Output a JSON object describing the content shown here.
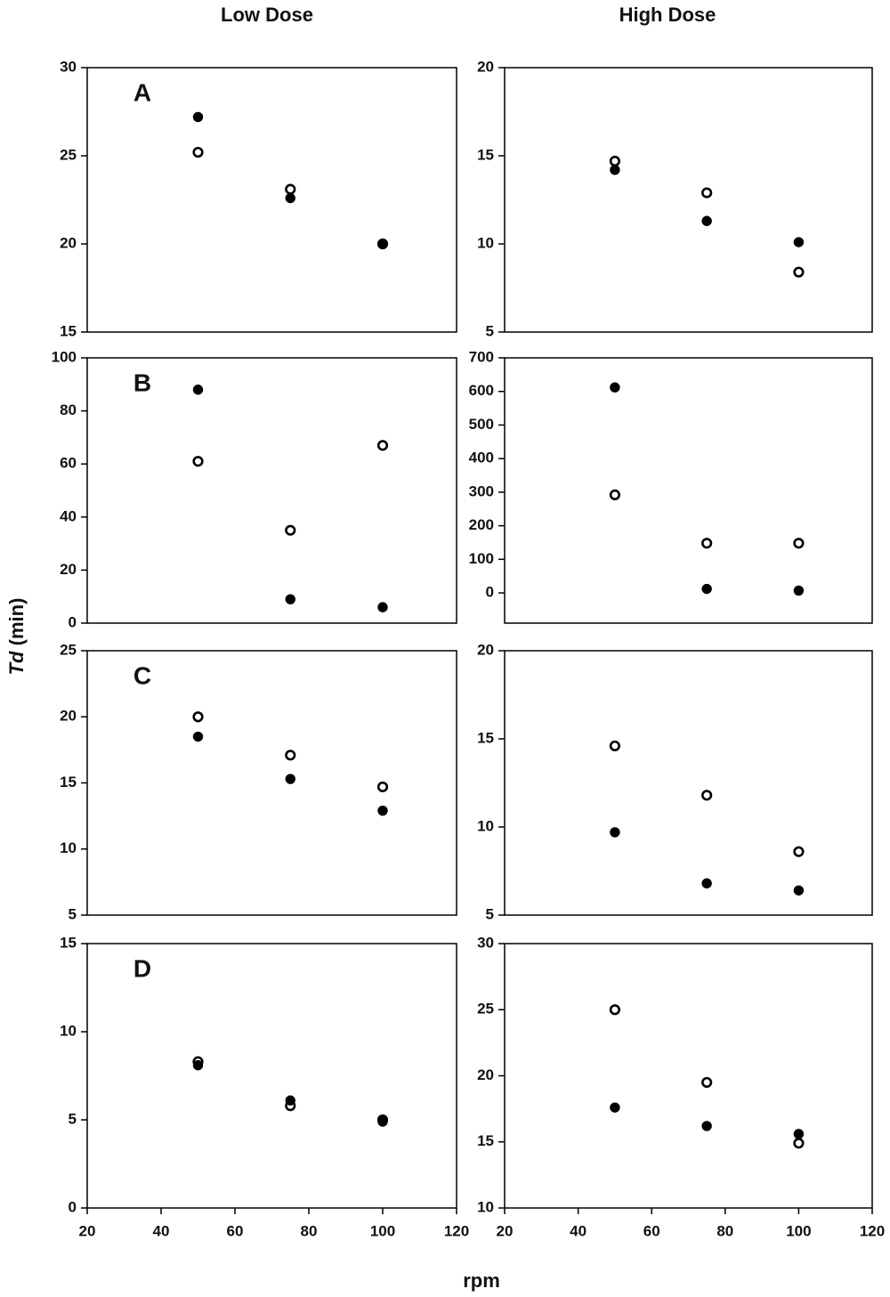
{
  "column_titles": [
    "Low Dose",
    "High Dose"
  ],
  "y_label_symbol": "Td",
  "y_label_unit": "(min)",
  "x_label": "rpm",
  "chart_data": [
    {
      "type": "scatter",
      "panel_label": "A",
      "x": [
        50,
        75,
        100
      ],
      "xlim": [
        20,
        120
      ],
      "ylim": [
        15,
        30
      ],
      "yticks": [
        15,
        20,
        25,
        30
      ],
      "series": [
        {
          "marker": "open",
          "color": "#000000",
          "values": [
            25.2,
            23.1,
            20
          ]
        },
        {
          "marker": "filled",
          "color": "#000000",
          "values": [
            27.2,
            22.6,
            20
          ]
        }
      ]
    },
    {
      "type": "scatter",
      "x": [
        50,
        75,
        100
      ],
      "xlim": [
        20,
        120
      ],
      "ylim": [
        5,
        20
      ],
      "yticks": [
        5,
        10,
        15,
        20
      ],
      "series": [
        {
          "marker": "open",
          "color": "#000000",
          "values": [
            14.7,
            12.9,
            8.4
          ]
        },
        {
          "marker": "filled",
          "color": "#000000",
          "values": [
            14.2,
            11.3,
            10.1
          ]
        }
      ]
    },
    {
      "type": "scatter",
      "panel_label": "B",
      "x": [
        50,
        75,
        100
      ],
      "xlim": [
        20,
        120
      ],
      "ylim": [
        0,
        100
      ],
      "yticks": [
        0,
        20,
        40,
        60,
        80,
        100
      ],
      "series": [
        {
          "marker": "open",
          "color": "#000000",
          "values": [
            61,
            35,
            67
          ]
        },
        {
          "marker": "filled",
          "color": "#000000",
          "values": [
            88,
            9,
            6
          ]
        }
      ]
    },
    {
      "type": "scatter",
      "x": [
        50,
        75,
        100
      ],
      "xlim": [
        20,
        120
      ],
      "ylim": [
        -90,
        700
      ],
      "yticks": [
        0,
        100,
        200,
        300,
        400,
        500,
        600,
        700
      ],
      "series": [
        {
          "marker": "open",
          "color": "#000000",
          "values": [
            292,
            148,
            148
          ]
        },
        {
          "marker": "filled",
          "color": "#000000",
          "values": [
            612,
            12,
            7
          ]
        }
      ]
    },
    {
      "type": "scatter",
      "panel_label": "C",
      "x": [
        50,
        75,
        100
      ],
      "xlim": [
        20,
        120
      ],
      "ylim": [
        5,
        25
      ],
      "yticks": [
        5,
        10,
        15,
        20,
        25
      ],
      "series": [
        {
          "marker": "open",
          "color": "#000000",
          "values": [
            20,
            17.1,
            14.7
          ]
        },
        {
          "marker": "filled",
          "color": "#000000",
          "values": [
            18.5,
            15.3,
            12.9
          ]
        }
      ]
    },
    {
      "type": "scatter",
      "x": [
        50,
        75,
        100
      ],
      "xlim": [
        20,
        120
      ],
      "ylim": [
        5,
        20
      ],
      "yticks": [
        5,
        10,
        15,
        20
      ],
      "series": [
        {
          "marker": "open",
          "color": "#000000",
          "values": [
            14.6,
            11.8,
            8.6
          ]
        },
        {
          "marker": "filled",
          "color": "#000000",
          "values": [
            9.7,
            6.8,
            6.4
          ]
        }
      ]
    },
    {
      "type": "scatter",
      "panel_label": "D",
      "x": [
        50,
        75,
        100
      ],
      "xlim": [
        20,
        120
      ],
      "xticks": [
        20,
        40,
        60,
        80,
        100,
        120
      ],
      "ylim": [
        0,
        15
      ],
      "yticks": [
        0,
        5,
        10,
        15
      ],
      "series": [
        {
          "marker": "open",
          "color": "#000000",
          "values": [
            8.3,
            5.8,
            5.0
          ]
        },
        {
          "marker": "filled",
          "color": "#000000",
          "values": [
            8.1,
            6.1,
            4.9
          ]
        }
      ]
    },
    {
      "type": "scatter",
      "x": [
        50,
        75,
        100
      ],
      "xlim": [
        20,
        120
      ],
      "xticks": [
        20,
        40,
        60,
        80,
        100,
        120
      ],
      "ylim": [
        10,
        30
      ],
      "yticks": [
        10,
        15,
        20,
        25,
        30
      ],
      "series": [
        {
          "marker": "open",
          "color": "#000000",
          "values": [
            25,
            19.5,
            14.9
          ]
        },
        {
          "marker": "filled",
          "color": "#000000",
          "values": [
            17.6,
            16.2,
            15.6
          ]
        }
      ]
    }
  ]
}
